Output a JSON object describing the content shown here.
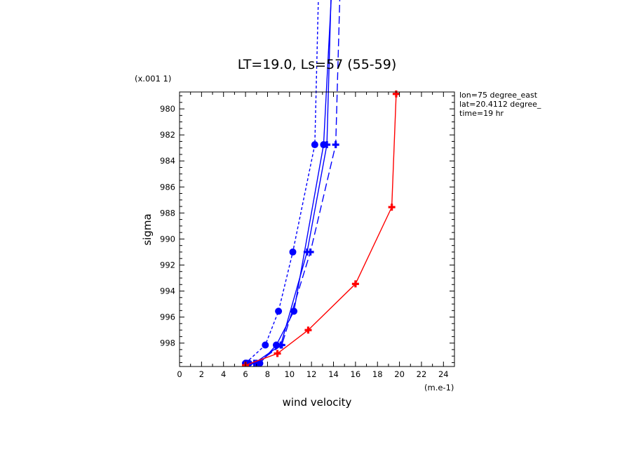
{
  "chart_data": {
    "type": "line",
    "title": "LT=19.0, Ls=57 (55-59)",
    "xlabel": "wind velocity",
    "ylabel": "sigma",
    "x_unit": "(m.e-1)",
    "y_unit": "(x.001 1)",
    "xlim": [
      0,
      25
    ],
    "ylim": [
      999.8,
      978.7
    ],
    "x_ticks": [
      "0",
      "2",
      "4",
      "6",
      "8",
      "10",
      "12",
      "14",
      "16",
      "18",
      "20",
      "22",
      "24"
    ],
    "y_ticks": [
      "980",
      "982",
      "984",
      "986",
      "988",
      "990",
      "992",
      "994",
      "996",
      "998"
    ],
    "grid": false,
    "info_lines": [
      "lon=75 degree_east",
      "lat=20.4112 degree_",
      "time=19 hr"
    ],
    "series": [
      {
        "color": "#0000ff",
        "line_style": "dashed-short",
        "marker": "circle",
        "x": [
          6.0,
          7.8,
          9.0,
          10.3,
          12.3,
          13.0
        ],
        "y": [
          999.55,
          998.15,
          995.55,
          991.0,
          982.75,
          958.5
        ]
      },
      {
        "color": "#0000ff",
        "line_style": "solid",
        "marker": "circle",
        "x": [
          6.3,
          7.3,
          8.8,
          10.4,
          13.1,
          14.6
        ],
        "y": [
          999.55,
          999.55,
          998.15,
          995.55,
          982.75,
          958.5
        ]
      },
      {
        "color": "#0000ff",
        "line_style": "solid",
        "marker": "plus",
        "x": [
          6.1,
          6.8,
          9.2,
          11.6,
          13.4,
          14.2
        ],
        "y": [
          999.55,
          999.55,
          998.15,
          991.0,
          982.75,
          958.5
        ]
      },
      {
        "color": "#0000ff",
        "line_style": "dashed-long",
        "marker": "plus",
        "x": [
          6.0,
          7.0,
          9.3,
          11.9,
          14.2,
          15.0
        ],
        "y": [
          999.55,
          999.55,
          998.15,
          991.0,
          982.75,
          958.5
        ]
      },
      {
        "color": "#ff0000",
        "line_style": "solid",
        "marker": "plus",
        "x": [
          6.0,
          8.9,
          11.7,
          16.0,
          19.3,
          19.7
        ],
        "y": [
          999.7,
          998.8,
          997.0,
          993.45,
          987.55,
          978.85
        ]
      }
    ]
  }
}
